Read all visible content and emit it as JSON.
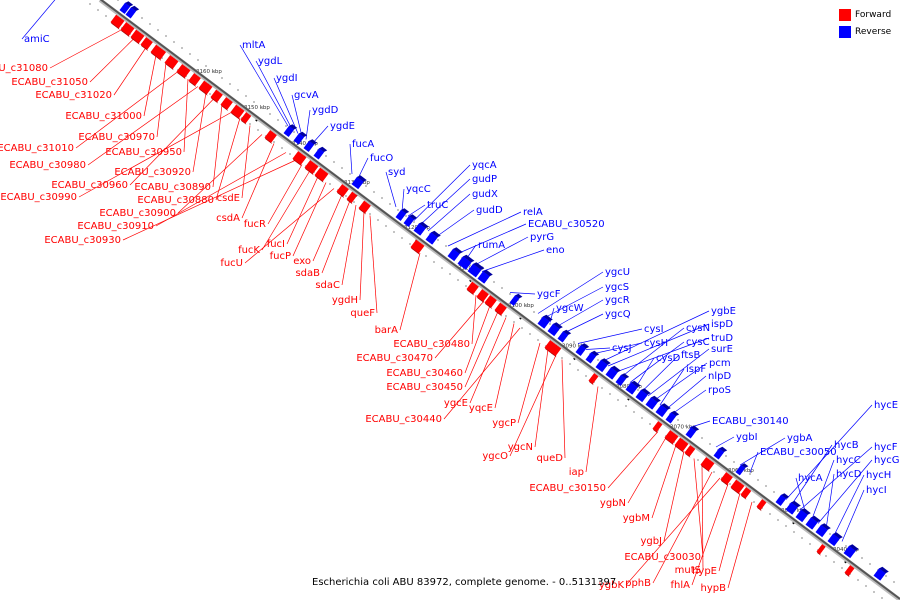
{
  "caption": "Escherichia coli ABU 83972, complete genome. - 0..5131397",
  "legend": {
    "forward": {
      "label": "Forward",
      "color": "#ff0000"
    },
    "reverse": {
      "label": "Reverse",
      "color": "#0000ff"
    }
  },
  "kbp_ticks": [
    "3160 kbp",
    "3150 kbp",
    "3140 kbp",
    "3130 kbp",
    "3120 kbp",
    "3110 kbp",
    "3100 kbp",
    "3090 kbp",
    "3080 kbp",
    "3070 kbp",
    "3060 kbp",
    "3050 kbp",
    "3040 kbp"
  ],
  "forward_genes": [
    "ECABU_c31080",
    "ECABU_c31050",
    "ECABU_c31020",
    "ECABU_c31000",
    "ECABU_c30970",
    "ECABU_c31010",
    "ECABU_c30950",
    "ECABU_c30980",
    "ECABU_c30920",
    "ECABU_c30960",
    "ECABU_c30890",
    "ECABU_c30990",
    "ECABU_c30880",
    "csdE",
    "ECABU_c30900",
    "csdA",
    "ECABU_c30910",
    "ECABU_c30930",
    "fucR",
    "fucK",
    "fucI",
    "fucP",
    "fucU",
    "exo",
    "sdaB",
    "sdaC",
    "ygdH",
    "queF",
    "barA",
    "ECABU_c30480",
    "ECABU_c30470",
    "ECABU_c30460",
    "ECABU_c30450",
    "ygcE",
    "yqcE",
    "ECABU_c30440",
    "ygcP",
    "ygcN",
    "ygcO",
    "queD",
    "iap",
    "ECABU_c30150",
    "ygbN",
    "ygbM",
    "ygbJ",
    "ECABU_c30030",
    "mutS",
    "pphB",
    "ygbK",
    "fhlA",
    "hypE",
    "hypB"
  ],
  "reverse_genes": [
    "amiC",
    "mltA",
    "ygdL",
    "ygdI",
    "gcvA",
    "ygdD",
    "ygdE",
    "fucA",
    "fucO",
    "syd",
    "yqcC",
    "truC",
    "yqcA",
    "gudP",
    "gudX",
    "gudD",
    "relA",
    "ECABU_c30520",
    "rumA",
    "pyrG",
    "eno",
    "ygcF",
    "ygcU",
    "ygcS",
    "ygcW",
    "ygcR",
    "ygcQ",
    "cysI",
    "cysJ",
    "cysH",
    "ygbE",
    "ispD",
    "truD",
    "cysN",
    "cysC",
    "cysD",
    "ftsB",
    "surE",
    "pcm",
    "ispF",
    "nlpD",
    "rpoS",
    "ECABU_c30140",
    "ygbI",
    "ygbA",
    "ECABU_c30050",
    "hycE",
    "hycB",
    "hycF",
    "hycA",
    "hycC",
    "hycG",
    "hycD",
    "hycH",
    "hycI"
  ]
}
